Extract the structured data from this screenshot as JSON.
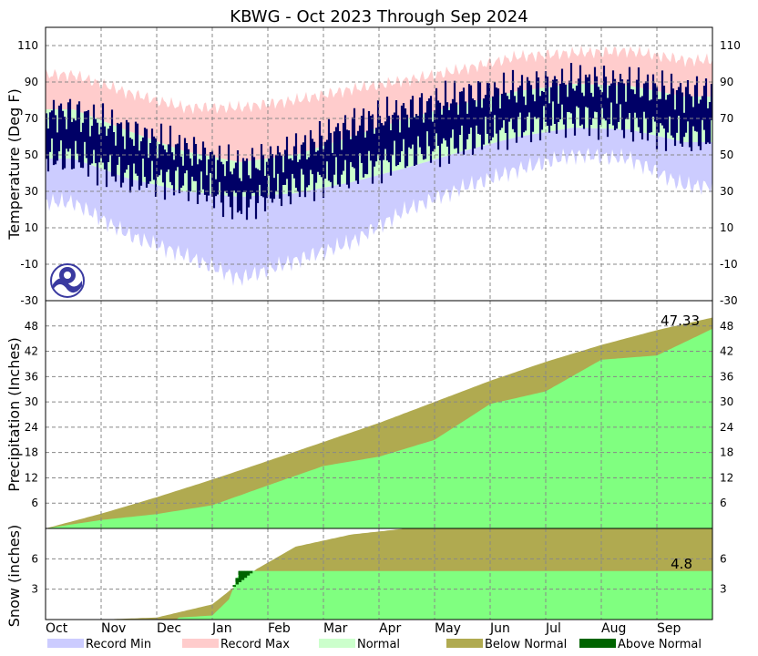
{
  "chart_data": [
    {
      "type": "area",
      "panel": "temperature",
      "title": "KBWG - Oct 2023 Through Sep 2024",
      "ylabel": "Temperature (Deg F)",
      "ylim": [
        -30,
        120
      ],
      "yticks": [
        -30,
        -10,
        10,
        30,
        50,
        70,
        90,
        110
      ],
      "months": [
        "Oct",
        "Nov",
        "Dec",
        "Jan",
        "Feb",
        "Mar",
        "Apr",
        "May",
        "Jun",
        "Jul",
        "Aug",
        "Sep"
      ],
      "normal_high": [
        75,
        63,
        52,
        46,
        50,
        60,
        70,
        78,
        85,
        89,
        88,
        82
      ],
      "normal_low": [
        48,
        37,
        30,
        27,
        29,
        35,
        43,
        52,
        60,
        65,
        64,
        57
      ],
      "record_max": [
        94,
        84,
        76,
        76,
        80,
        86,
        91,
        97,
        104,
        106,
        107,
        102
      ],
      "record_min": [
        24,
        6,
        -5,
        -18,
        -8,
        2,
        20,
        32,
        42,
        50,
        48,
        33
      ],
      "obs_high": [
        73,
        62,
        53,
        43,
        52,
        66,
        74,
        82,
        86,
        90,
        89,
        84
      ],
      "obs_low": [
        49,
        38,
        35,
        22,
        33,
        40,
        50,
        57,
        65,
        70,
        67,
        60
      ],
      "grid": true
    },
    {
      "type": "area",
      "panel": "precipitation",
      "ylabel": "Precipitation (Inches)",
      "ylim": [
        0,
        54
      ],
      "yticks": [
        6,
        12,
        18,
        24,
        30,
        36,
        42,
        48
      ],
      "normal_cum": [
        0,
        3.5,
        7.4,
        11.6,
        16.0,
        20.5,
        25.0,
        30.0,
        35.0,
        39.5,
        43.5,
        47.0,
        50.0
      ],
      "obs_cum": [
        0,
        2.0,
        3.4,
        5.5,
        10.2,
        14.8,
        17.0,
        21.0,
        29.5,
        32.5,
        40.0,
        41.0,
        47.33
      ],
      "end_label": "47.33",
      "series": [
        {
          "name": "Below Normal"
        }
      ],
      "grid": true
    },
    {
      "type": "area",
      "panel": "snow",
      "ylabel": "Snow (inches)",
      "ylim": [
        0,
        9
      ],
      "yticks": [
        3,
        6
      ],
      "normal_cum": [
        [
          0,
          0
        ],
        [
          1,
          0
        ],
        [
          2,
          0.2
        ],
        [
          3,
          1.5
        ],
        [
          3.8,
          5.0
        ],
        [
          4.5,
          7.2
        ],
        [
          5.5,
          8.4
        ],
        [
          6.5,
          9.0
        ],
        [
          12,
          9.0
        ]
      ],
      "obs_cum": [
        [
          0,
          0
        ],
        [
          2.4,
          0
        ],
        [
          2.4,
          0.2
        ],
        [
          3.0,
          0.4
        ],
        [
          3.3,
          2.0
        ],
        [
          3.5,
          4.8
        ],
        [
          12,
          4.8
        ]
      ],
      "end_label": "4.8",
      "grid": true
    }
  ],
  "legend": [
    {
      "label": "Record Min",
      "color": "#ccccff"
    },
    {
      "label": "Record Max",
      "color": "#ffcccc"
    },
    {
      "label": "Normal",
      "color": "#ccffcc"
    },
    {
      "label": "Below Normal",
      "color": "#b0aa50"
    },
    {
      "label": "Above Normal",
      "color": "#006400"
    }
  ],
  "colors": {
    "observed": "#000066",
    "precip_obs": "#80ff80",
    "noaa_logo": "#3a3aa0"
  }
}
